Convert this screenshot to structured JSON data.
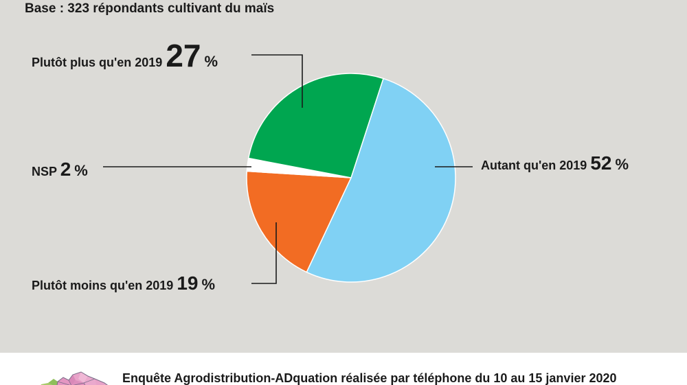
{
  "base_text": "Base : 323 répondants cultivant du maïs",
  "footer_text": "Enquête Agrodistribution-ADquation réalisée par téléphone du 10 au 15 janvier 2020",
  "map_icon": "france-regions-map-icon",
  "chart_data": {
    "type": "pie",
    "title": "",
    "slices": [
      {
        "label": "Autant qu'en 2019",
        "value": 52,
        "display": "52",
        "unit": "%",
        "color": "#80d1f4"
      },
      {
        "label": "Plutôt moins qu'en 2019",
        "value": 19,
        "display": "19",
        "unit": "%",
        "color": "#f26c23"
      },
      {
        "label": "NSP",
        "value": 2,
        "display": "2",
        "unit": "%",
        "color": "#ffffff"
      },
      {
        "label": "Plutôt plus qu'en 2019",
        "value": 27,
        "display": "27",
        "unit": "%",
        "color": "#00a650"
      }
    ],
    "start_angle_deg": 18,
    "direction": "clockwise",
    "legend": "none"
  }
}
